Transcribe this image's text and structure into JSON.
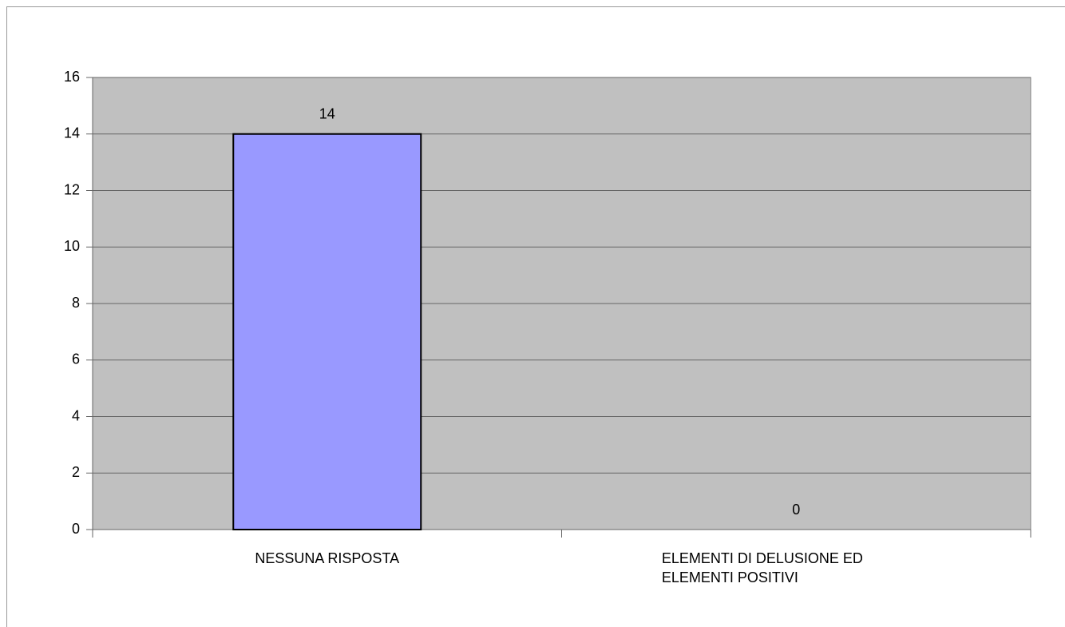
{
  "chart_data": {
    "type": "bar",
    "categories": [
      "NESSUNA RISPOSTA",
      "ELEMENTI DI DELUSIONE ED ELEMENTI POSITIVI"
    ],
    "values": [
      14,
      0
    ],
    "color": "#9999ff",
    "ylim": [
      0,
      16
    ],
    "yticks": [
      0,
      2,
      4,
      6,
      8,
      10,
      12,
      14,
      16
    ],
    "grid": true
  }
}
